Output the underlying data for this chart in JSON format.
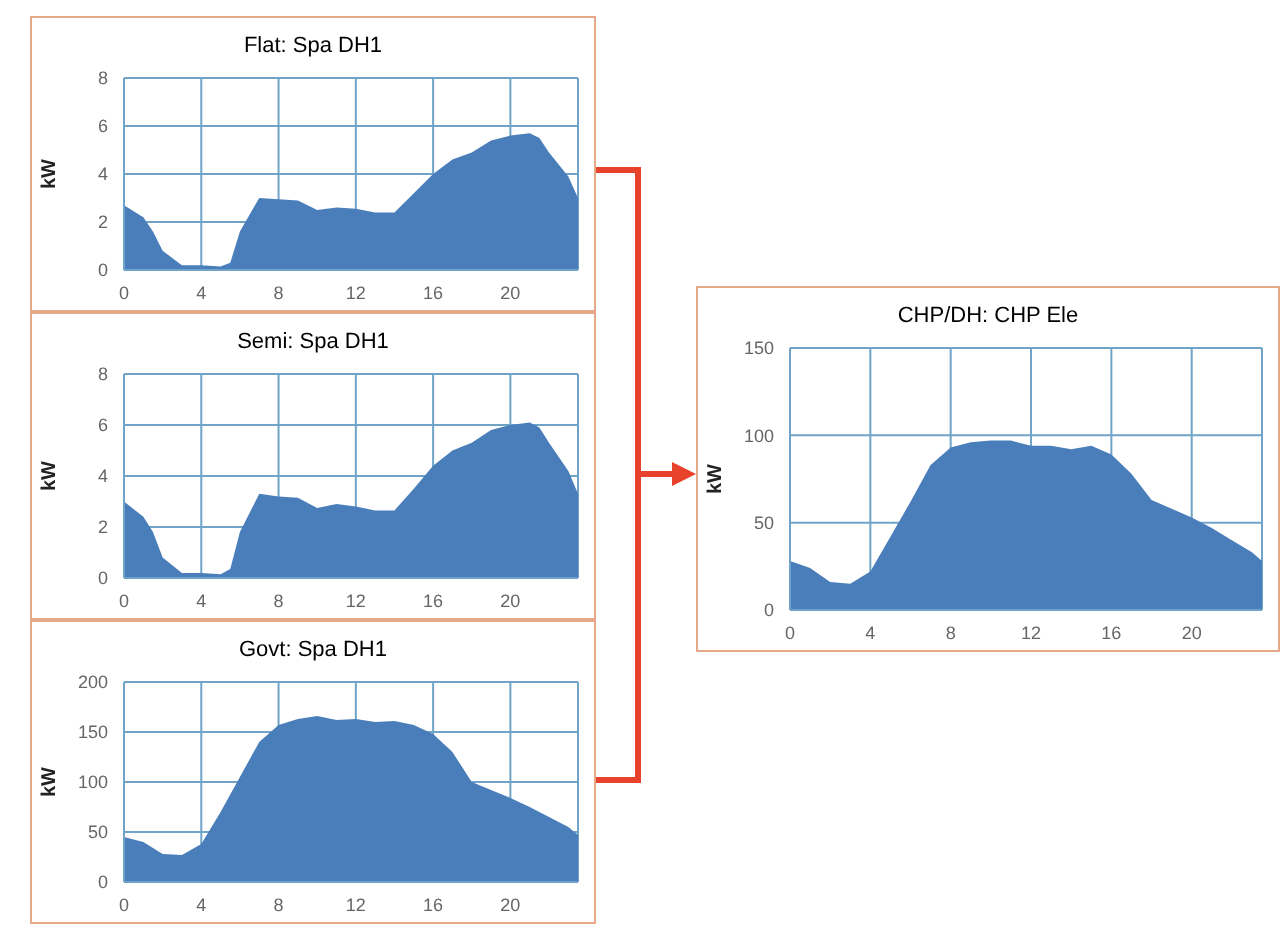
{
  "chart_data": [
    {
      "type": "area",
      "title": "Flat: Spa DH1",
      "ylabel": "kW",
      "color": "#4a7ebb",
      "grid": true,
      "xlim": [
        0,
        23.5
      ],
      "xticks": [
        0,
        4,
        8,
        12,
        16,
        20
      ],
      "ylim": [
        0,
        8
      ],
      "yticks": [
        0,
        2,
        4,
        6,
        8
      ],
      "x": [
        0,
        1,
        1.5,
        2,
        3,
        4,
        5,
        5.5,
        6,
        7,
        8,
        9,
        10,
        11,
        12,
        13,
        14,
        15,
        16,
        17,
        18,
        19,
        20,
        21,
        21.5,
        22,
        23,
        23.5
      ],
      "values": [
        2.7,
        2.2,
        1.6,
        0.8,
        0.2,
        0.2,
        0.15,
        0.3,
        1.6,
        3.0,
        2.95,
        2.9,
        2.5,
        2.6,
        2.55,
        2.4,
        2.4,
        3.2,
        4.0,
        4.6,
        4.9,
        5.4,
        5.6,
        5.7,
        5.5,
        4.9,
        3.9,
        3.0
      ]
    },
    {
      "type": "area",
      "title": "Semi: Spa DH1",
      "ylabel": "kW",
      "color": "#4a7ebb",
      "grid": true,
      "xlim": [
        0,
        23.5
      ],
      "xticks": [
        0,
        4,
        8,
        12,
        16,
        20
      ],
      "ylim": [
        0,
        8
      ],
      "yticks": [
        0,
        2,
        4,
        6,
        8
      ],
      "x": [
        0,
        1,
        1.5,
        2,
        3,
        4,
        5,
        5.5,
        6,
        7,
        8,
        9,
        10,
        11,
        12,
        13,
        14,
        15,
        16,
        17,
        18,
        19,
        20,
        21,
        21.5,
        22,
        23,
        23.5
      ],
      "values": [
        3.0,
        2.4,
        1.8,
        0.8,
        0.2,
        0.2,
        0.15,
        0.35,
        1.8,
        3.3,
        3.2,
        3.15,
        2.75,
        2.9,
        2.8,
        2.65,
        2.65,
        3.5,
        4.4,
        5.0,
        5.3,
        5.8,
        6.0,
        6.1,
        5.9,
        5.3,
        4.2,
        3.3
      ]
    },
    {
      "type": "area",
      "title": "Govt: Spa DH1",
      "ylabel": "kW",
      "color": "#4a7ebb",
      "grid": true,
      "xlim": [
        0,
        23.5
      ],
      "xticks": [
        0,
        4,
        8,
        12,
        16,
        20
      ],
      "ylim": [
        0,
        200
      ],
      "yticks": [
        0,
        50,
        100,
        150,
        200
      ],
      "x": [
        0,
        1,
        2,
        3,
        4,
        5,
        6,
        7,
        8,
        9,
        10,
        11,
        12,
        13,
        14,
        15,
        16,
        17,
        18,
        19,
        20,
        21,
        22,
        23,
        23.5
      ],
      "values": [
        45,
        40,
        28,
        27,
        38,
        70,
        105,
        140,
        157,
        163,
        166,
        162,
        163,
        160,
        161,
        157,
        148,
        130,
        100,
        92,
        84,
        75,
        65,
        55,
        47
      ]
    },
    {
      "type": "area",
      "title": "CHP/DH: CHP Ele",
      "ylabel": "kW",
      "color": "#4a7ebb",
      "grid": true,
      "xlim": [
        0,
        23.5
      ],
      "xticks": [
        0,
        4,
        8,
        12,
        16,
        20
      ],
      "ylim": [
        0,
        150
      ],
      "yticks": [
        0,
        50,
        100,
        150
      ],
      "x": [
        0,
        1,
        2,
        3,
        4,
        5,
        6,
        7,
        8,
        9,
        10,
        11,
        12,
        13,
        14,
        15,
        16,
        17,
        18,
        19,
        20,
        21,
        22,
        23,
        23.5
      ],
      "values": [
        28,
        24,
        16,
        15,
        22,
        42,
        62,
        83,
        93,
        96,
        97,
        97,
        94,
        94,
        92,
        94,
        89,
        78,
        63,
        58,
        53,
        47,
        40,
        33,
        28
      ]
    }
  ]
}
